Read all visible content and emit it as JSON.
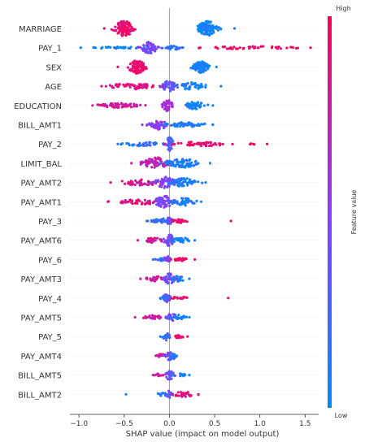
{
  "chart_data": {
    "type": "scatter",
    "subtype": "beeswarm",
    "title": "",
    "xlabel": "SHAP value (impact on model output)",
    "xlim": [
      -1.1,
      1.65
    ],
    "xticks": [
      -1.0,
      -0.5,
      0.0,
      0.5,
      1.0,
      1.5
    ],
    "xtick_labels": [
      "−1.0",
      "−0.5",
      "0.0",
      "0.5",
      "1.0",
      "1.5"
    ],
    "zero_line": true,
    "colorbar": {
      "label": "Feature value",
      "high_label": "High",
      "low_label": "Low",
      "high_color": "#ff0052",
      "mid_color": "#8a3cff",
      "low_color": "#008bfb"
    },
    "features": [
      {
        "name": "MARRIAGE",
        "range": [
          -0.72,
          0.72
        ],
        "clusters": [
          {
            "center": -0.5,
            "spread": 0.12,
            "width": 0.16,
            "color": 0.92,
            "n": 110
          },
          {
            "center": 0.42,
            "spread": 0.12,
            "width": 0.15,
            "color": 0.05,
            "n": 110
          }
        ]
      },
      {
        "name": "PAY_1",
        "range": [
          -0.98,
          1.56
        ],
        "clusters": [
          {
            "center": -0.22,
            "spread": 0.1,
            "width": 0.12,
            "color": 0.45,
            "n": 70
          },
          {
            "center": -0.6,
            "spread": 0.3,
            "width": 0.02,
            "color": 0.05,
            "n": 30
          },
          {
            "center": 0.05,
            "spread": 0.12,
            "width": 0.04,
            "color": 0.15,
            "n": 25
          },
          {
            "center": 0.9,
            "spread": 0.55,
            "width": 0.03,
            "color": 0.95,
            "n": 45
          }
        ]
      },
      {
        "name": "SEX",
        "range": [
          -0.57,
          0.52
        ],
        "clusters": [
          {
            "center": -0.36,
            "spread": 0.1,
            "width": 0.14,
            "color": 0.93,
            "n": 90
          },
          {
            "center": 0.35,
            "spread": 0.1,
            "width": 0.12,
            "color": 0.05,
            "n": 80
          }
        ]
      },
      {
        "name": "AGE",
        "range": [
          -0.75,
          0.57
        ],
        "clusters": [
          {
            "center": -0.4,
            "spread": 0.3,
            "width": 0.06,
            "color": 0.85,
            "n": 60
          },
          {
            "center": 0.0,
            "spread": 0.08,
            "width": 0.12,
            "color": 0.35,
            "n": 40
          },
          {
            "center": 0.25,
            "spread": 0.15,
            "width": 0.08,
            "color": 0.08,
            "n": 45
          }
        ]
      },
      {
        "name": "EDUCATION",
        "range": [
          -0.85,
          0.48
        ],
        "clusters": [
          {
            "center": -0.55,
            "spread": 0.25,
            "width": 0.05,
            "color": 0.8,
            "n": 60
          },
          {
            "center": -0.02,
            "spread": 0.06,
            "width": 0.12,
            "color": 0.6,
            "n": 40
          },
          {
            "center": 0.28,
            "spread": 0.12,
            "width": 0.08,
            "color": 0.05,
            "n": 45
          }
        ]
      },
      {
        "name": "BILL_AMT1",
        "range": [
          -0.3,
          0.48
        ],
        "clusters": [
          {
            "center": -0.12,
            "spread": 0.1,
            "width": 0.1,
            "color": 0.5,
            "n": 50
          },
          {
            "center": 0.2,
            "spread": 0.25,
            "width": 0.05,
            "color": 0.1,
            "n": 55
          }
        ]
      },
      {
        "name": "PAY_2",
        "range": [
          -0.57,
          1.08
        ],
        "clusters": [
          {
            "center": -0.3,
            "spread": 0.25,
            "width": 0.04,
            "color": 0.15,
            "n": 35
          },
          {
            "center": 0.0,
            "spread": 0.05,
            "width": 0.14,
            "color": 0.3,
            "n": 35
          },
          {
            "center": 0.35,
            "spread": 0.35,
            "width": 0.05,
            "color": 0.92,
            "n": 45
          },
          {
            "center": 0.9,
            "spread": 0.15,
            "width": 0.01,
            "color": 0.95,
            "n": 4
          }
        ]
      },
      {
        "name": "LIMIT_BAL",
        "range": [
          -0.42,
          0.45
        ],
        "clusters": [
          {
            "center": -0.15,
            "spread": 0.15,
            "width": 0.12,
            "color": 0.75,
            "n": 65
          },
          {
            "center": 0.15,
            "spread": 0.2,
            "width": 0.09,
            "color": 0.1,
            "n": 65
          }
        ]
      },
      {
        "name": "PAY_AMT2",
        "range": [
          -0.65,
          0.4
        ],
        "clusters": [
          {
            "center": -0.3,
            "spread": 0.3,
            "width": 0.06,
            "color": 0.8,
            "n": 45
          },
          {
            "center": -0.05,
            "spread": 0.12,
            "width": 0.12,
            "color": 0.45,
            "n": 55
          },
          {
            "center": 0.15,
            "spread": 0.15,
            "width": 0.09,
            "color": 0.08,
            "n": 50
          }
        ]
      },
      {
        "name": "PAY_AMT1",
        "range": [
          -0.68,
          0.35
        ],
        "clusters": [
          {
            "center": -0.3,
            "spread": 0.3,
            "width": 0.05,
            "color": 0.82,
            "n": 45
          },
          {
            "center": -0.05,
            "spread": 0.12,
            "width": 0.12,
            "color": 0.45,
            "n": 55
          },
          {
            "center": 0.15,
            "spread": 0.15,
            "width": 0.08,
            "color": 0.08,
            "n": 45
          }
        ]
      },
      {
        "name": "PAY_3",
        "range": [
          -0.25,
          0.68
        ],
        "clusters": [
          {
            "center": -0.08,
            "spread": 0.12,
            "width": 0.05,
            "color": 0.15,
            "n": 35
          },
          {
            "center": 0.0,
            "spread": 0.04,
            "width": 0.09,
            "color": 0.4,
            "n": 25
          },
          {
            "center": 0.13,
            "spread": 0.08,
            "width": 0.04,
            "color": 0.93,
            "n": 20
          }
        ]
      },
      {
        "name": "PAY_AMT6",
        "range": [
          -0.35,
          0.28
        ],
        "clusters": [
          {
            "center": -0.18,
            "spread": 0.12,
            "width": 0.05,
            "color": 0.8,
            "n": 30
          },
          {
            "center": 0.0,
            "spread": 0.06,
            "width": 0.12,
            "color": 0.35,
            "n": 35
          },
          {
            "center": 0.13,
            "spread": 0.1,
            "width": 0.06,
            "color": 0.08,
            "n": 30
          }
        ]
      },
      {
        "name": "PAY_6",
        "range": [
          -0.18,
          0.28
        ],
        "clusters": [
          {
            "center": -0.06,
            "spread": 0.08,
            "width": 0.04,
            "color": 0.15,
            "n": 25
          },
          {
            "center": -0.02,
            "spread": 0.03,
            "width": 0.09,
            "color": 0.45,
            "n": 20
          },
          {
            "center": 0.13,
            "spread": 0.1,
            "width": 0.03,
            "color": 0.92,
            "n": 25
          }
        ]
      },
      {
        "name": "PAY_AMT3",
        "range": [
          -0.32,
          0.22
        ],
        "clusters": [
          {
            "center": -0.15,
            "spread": 0.12,
            "width": 0.05,
            "color": 0.8,
            "n": 30
          },
          {
            "center": 0.0,
            "spread": 0.06,
            "width": 0.11,
            "color": 0.4,
            "n": 35
          },
          {
            "center": 0.1,
            "spread": 0.08,
            "width": 0.06,
            "color": 0.08,
            "n": 25
          }
        ]
      },
      {
        "name": "PAY_4",
        "range": [
          -0.1,
          0.65
        ],
        "clusters": [
          {
            "center": -0.03,
            "spread": 0.04,
            "width": 0.1,
            "color": 0.45,
            "n": 25
          },
          {
            "center": 0.1,
            "spread": 0.1,
            "width": 0.03,
            "color": 0.92,
            "n": 20
          },
          {
            "center": -0.05,
            "spread": 0.05,
            "width": 0.04,
            "color": 0.15,
            "n": 15
          }
        ]
      },
      {
        "name": "PAY_AMT5",
        "range": [
          -0.38,
          0.22
        ],
        "clusters": [
          {
            "center": -0.18,
            "spread": 0.12,
            "width": 0.04,
            "color": 0.78,
            "n": 25
          },
          {
            "center": 0.02,
            "spread": 0.06,
            "width": 0.1,
            "color": 0.4,
            "n": 30
          },
          {
            "center": 0.1,
            "spread": 0.08,
            "width": 0.05,
            "color": 0.08,
            "n": 20
          }
        ]
      },
      {
        "name": "PAY_5",
        "range": [
          -0.1,
          0.2
        ],
        "clusters": [
          {
            "center": -0.03,
            "spread": 0.04,
            "width": 0.08,
            "color": 0.4,
            "n": 20
          },
          {
            "center": 0.1,
            "spread": 0.07,
            "width": 0.03,
            "color": 0.92,
            "n": 15
          },
          {
            "center": -0.05,
            "spread": 0.04,
            "width": 0.03,
            "color": 0.15,
            "n": 10
          }
        ]
      },
      {
        "name": "PAY_AMT4",
        "range": [
          -0.15,
          0.08
        ],
        "clusters": [
          {
            "center": -0.08,
            "spread": 0.06,
            "width": 0.04,
            "color": 0.78,
            "n": 20
          },
          {
            "center": 0.0,
            "spread": 0.04,
            "width": 0.09,
            "color": 0.35,
            "n": 25
          },
          {
            "center": 0.05,
            "spread": 0.03,
            "width": 0.06,
            "color": 0.08,
            "n": 15
          }
        ]
      },
      {
        "name": "BILL_AMT5",
        "range": [
          -0.18,
          0.22
        ],
        "clusters": [
          {
            "center": 0.0,
            "spread": 0.05,
            "width": 0.1,
            "color": 0.4,
            "n": 25
          },
          {
            "center": 0.12,
            "spread": 0.08,
            "width": 0.03,
            "color": 0.08,
            "n": 15
          },
          {
            "center": -0.12,
            "spread": 0.06,
            "width": 0.03,
            "color": 0.8,
            "n": 10
          }
        ]
      },
      {
        "name": "BILL_AMT2",
        "range": [
          -0.48,
          0.32
        ],
        "clusters": [
          {
            "center": 0.0,
            "spread": 0.05,
            "width": 0.07,
            "color": 0.35,
            "n": 20
          },
          {
            "center": 0.15,
            "spread": 0.15,
            "width": 0.05,
            "color": 0.85,
            "n": 25
          },
          {
            "center": -0.08,
            "spread": 0.05,
            "width": 0.04,
            "color": 0.08,
            "n": 10
          }
        ]
      }
    ]
  }
}
